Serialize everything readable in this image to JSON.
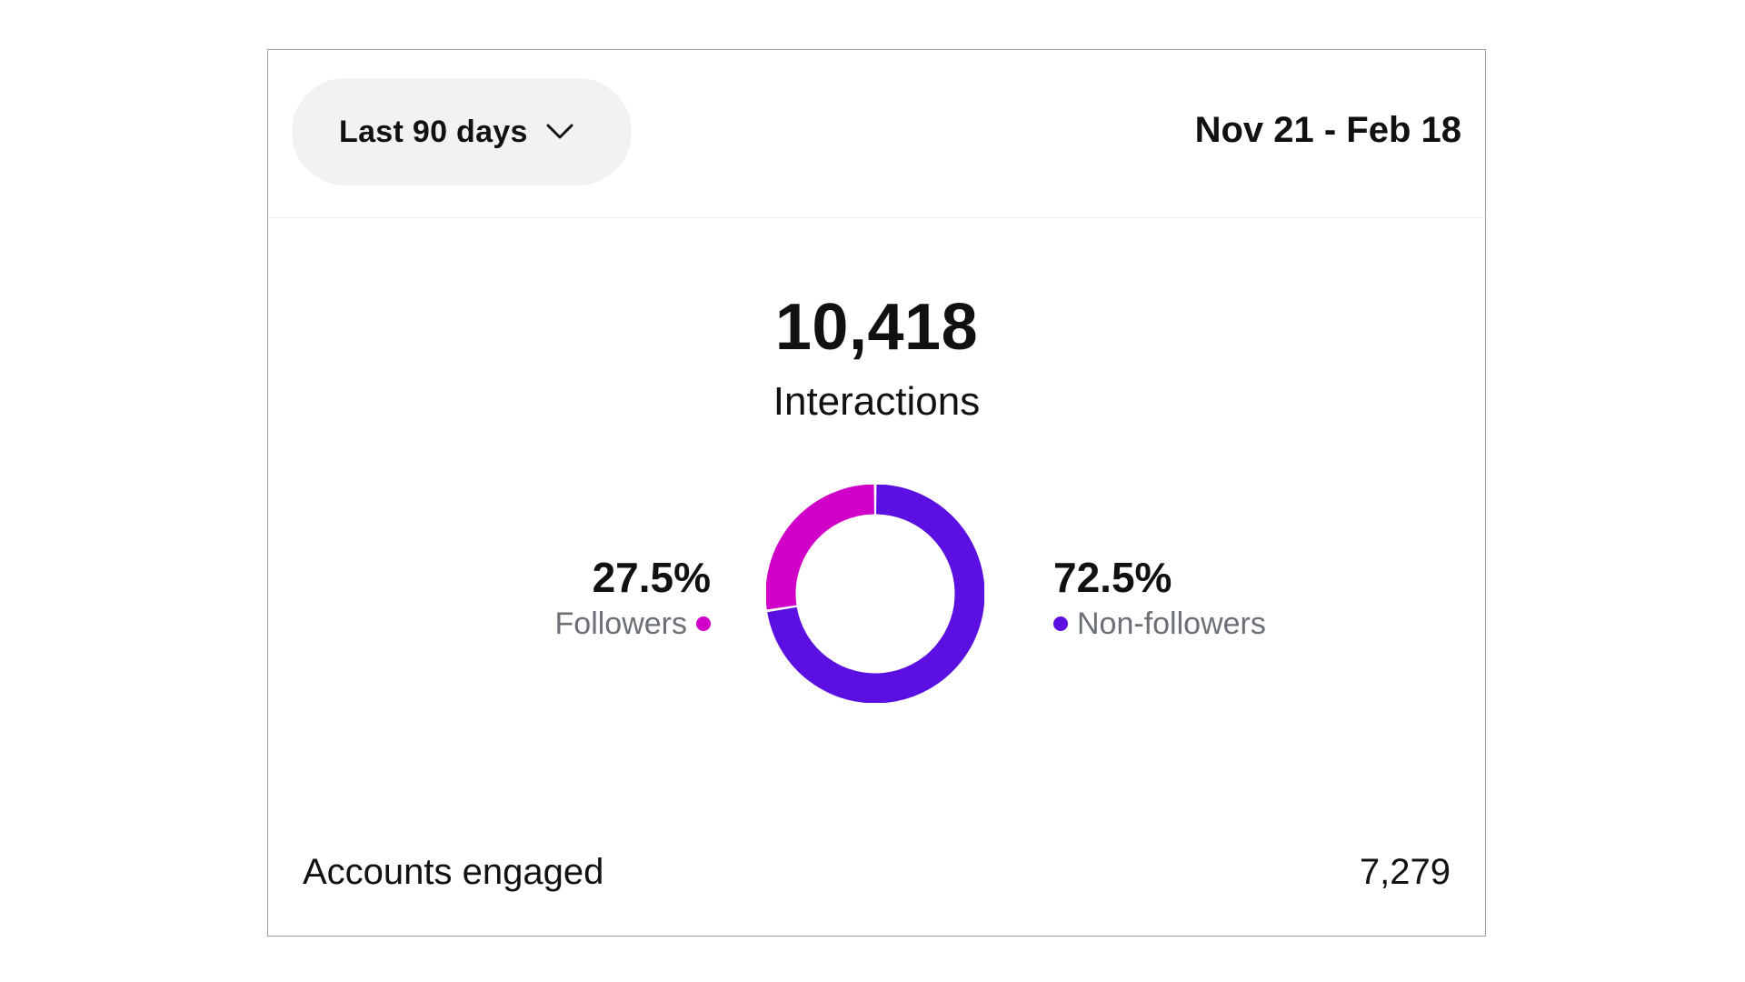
{
  "header": {
    "range_label": "Last 90 days",
    "range_icon": "chevron-down-icon",
    "date_range": "Nov 21 - Feb 18"
  },
  "summary": {
    "total": "10,418",
    "total_label": "Interactions"
  },
  "breakdown": {
    "followers": {
      "percent_text": "27.5%",
      "label": "Followers",
      "color": "#d100c8"
    },
    "non_followers": {
      "percent_text": "72.5%",
      "label": "Non-followers",
      "color": "#5b0fe0"
    }
  },
  "chart_data": {
    "type": "pie",
    "categories": [
      "Followers",
      "Non-followers"
    ],
    "values": [
      27.5,
      72.5
    ],
    "colors": [
      "#d100c8",
      "#5b0fe0"
    ],
    "donut": true,
    "title": "",
    "xlabel": "",
    "ylabel": ""
  },
  "footer": {
    "label": "Accounts engaged",
    "value": "7,279"
  }
}
